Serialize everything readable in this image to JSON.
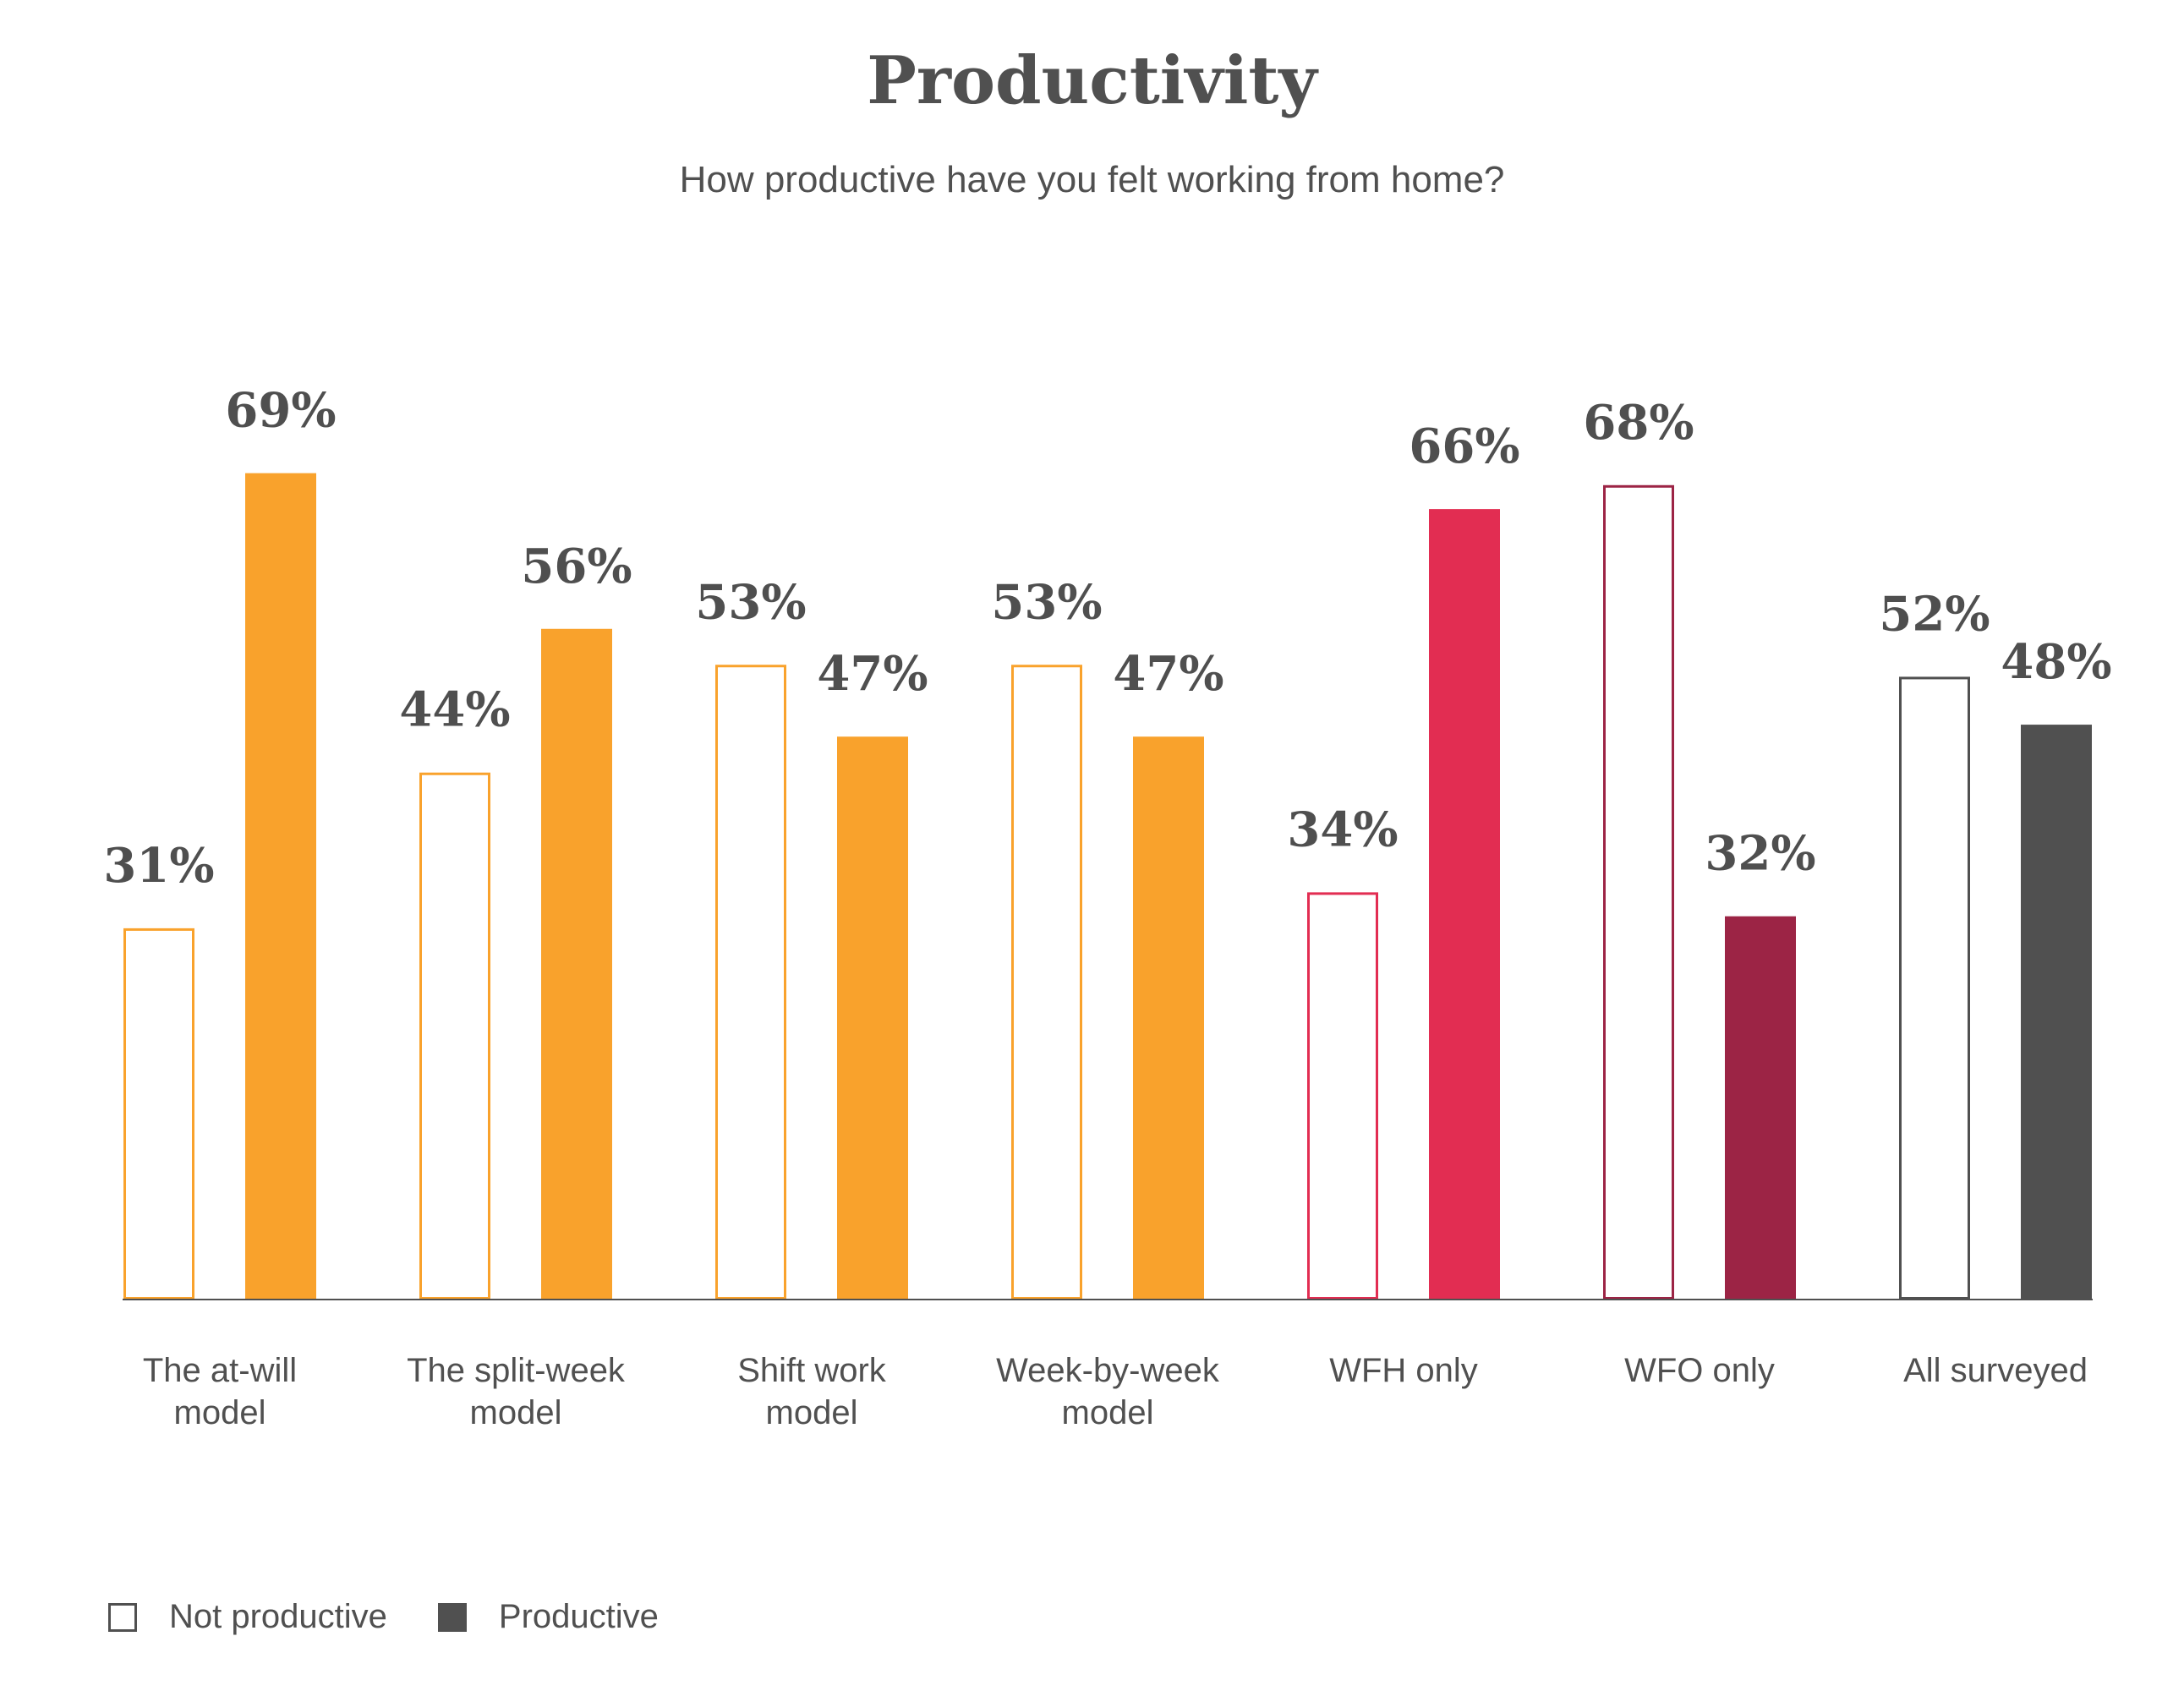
{
  "chart_data": {
    "type": "bar",
    "title": "Productivity",
    "subtitle": "How productive have you felt working from home?",
    "categories": [
      [
        "The at-will",
        "model"
      ],
      [
        "The split-week",
        "model"
      ],
      [
        "Shift work",
        "model"
      ],
      [
        "Week-by-week",
        "model"
      ],
      [
        "WFH only"
      ],
      [
        "WFO only"
      ],
      [
        "All surveyed"
      ]
    ],
    "series": [
      {
        "name": "Not productive",
        "values": [
          31,
          44,
          53,
          53,
          34,
          68,
          52
        ],
        "value_labels": [
          "31%",
          "44%",
          "53%",
          "53%",
          "34%",
          "68%",
          "52%"
        ]
      },
      {
        "name": "Productive",
        "values": [
          69,
          56,
          47,
          47,
          66,
          32,
          48
        ],
        "value_labels": [
          "69%",
          "56%",
          "47%",
          "47%",
          "66%",
          "32%",
          "48%"
        ]
      }
    ],
    "category_colors": [
      "#f9a22c",
      "#f9a22c",
      "#f9a22c",
      "#f9a22c",
      "#e22d52",
      "#9c2445",
      "#505050"
    ],
    "ylim": [
      0,
      100
    ],
    "legend": "bottom-left",
    "grid": false
  }
}
